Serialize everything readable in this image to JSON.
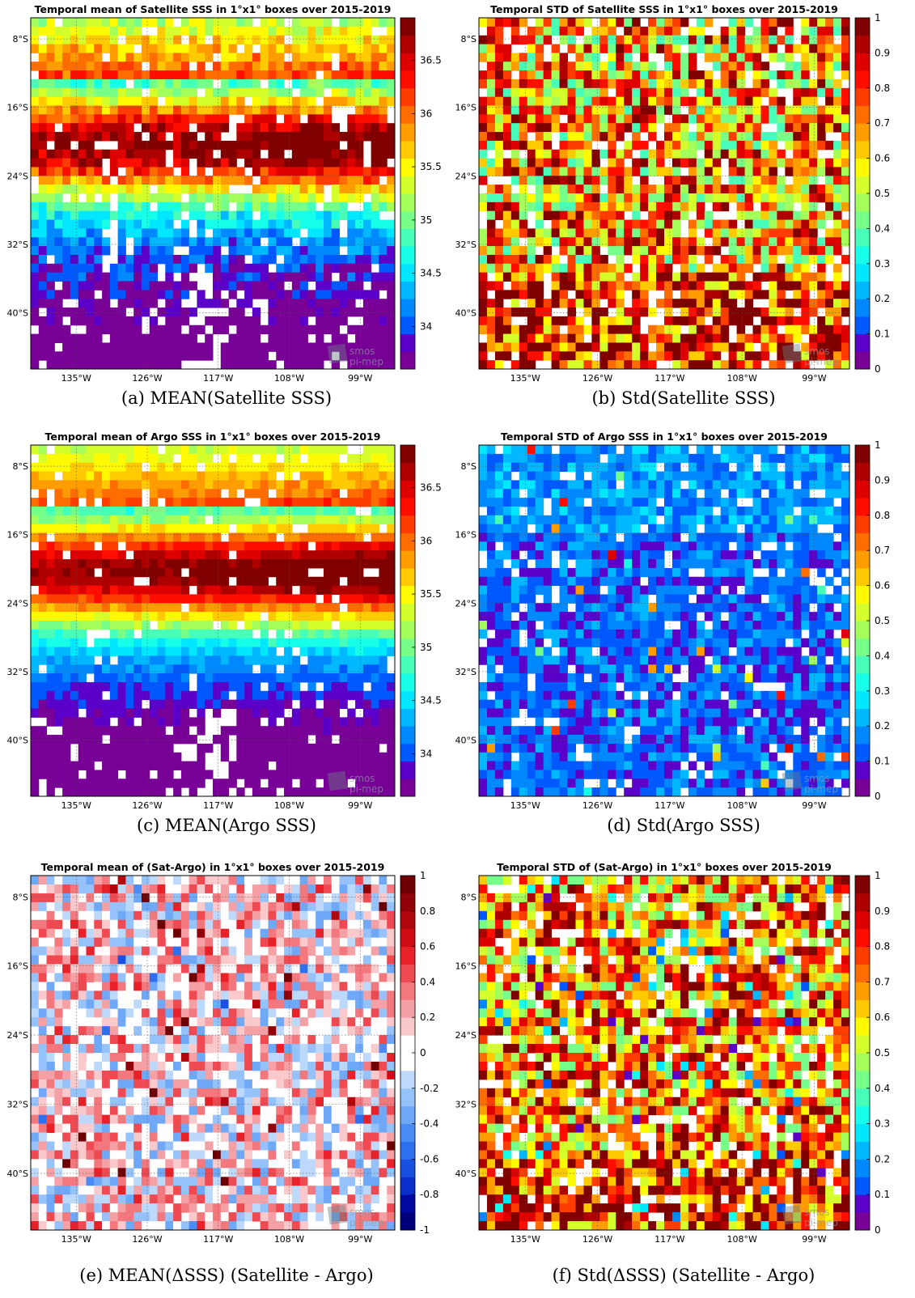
{
  "chart_data": [
    {
      "id": "a",
      "type": "heatmap",
      "title": "Temporal mean of Satellite SSS in 1°x1° boxes over 2015-2019",
      "caption": "(a) MEAN(Satellite SSS)",
      "colormap": "jet",
      "clim": [
        33.6,
        36.9
      ],
      "colorbar_ticks": [
        "34",
        "34.5",
        "35",
        "35.5",
        "36",
        "36.5"
      ],
      "colorbar_tick_values": [
        34,
        34.5,
        35,
        35.5,
        36,
        36.5
      ],
      "x_ticks": [
        "135°W",
        "126°W",
        "117°W",
        "108°W",
        "99°W"
      ],
      "y_ticks": [
        "8°S",
        "16°S",
        "24°S",
        "32°S",
        "40°S"
      ],
      "grid": true,
      "watermark": "smos pi-mep"
    },
    {
      "id": "b",
      "type": "heatmap",
      "title": "Temporal STD of Satellite SSS in 1°x1° boxes over 2015-2019",
      "caption": "(b) Std(Satellite SSS)",
      "colormap": "jet",
      "clim": [
        0,
        1
      ],
      "colorbar_ticks": [
        "0",
        "0.1",
        "0.2",
        "0.3",
        "0.4",
        "0.5",
        "0.6",
        "0.7",
        "0.8",
        "0.9",
        "1"
      ],
      "colorbar_tick_values": [
        0,
        0.1,
        0.2,
        0.3,
        0.4,
        0.5,
        0.6,
        0.7,
        0.8,
        0.9,
        1
      ],
      "x_ticks": [
        "135°W",
        "126°W",
        "117°W",
        "108°W",
        "99°W"
      ],
      "y_ticks": [
        "8°S",
        "16°S",
        "24°S",
        "32°S",
        "40°S"
      ],
      "grid": true,
      "watermark": "smos pi-mep"
    },
    {
      "id": "c",
      "type": "heatmap",
      "title": "Temporal mean of Argo SSS in 1°x1° boxes over 2015-2019",
      "caption": "(c) MEAN(Argo SSS)",
      "colormap": "jet",
      "clim": [
        33.6,
        36.9
      ],
      "colorbar_ticks": [
        "34",
        "34.5",
        "35",
        "35.5",
        "36",
        "36.5"
      ],
      "colorbar_tick_values": [
        34,
        34.5,
        35,
        35.5,
        36,
        36.5
      ],
      "x_ticks": [
        "135°W",
        "126°W",
        "117°W",
        "108°W",
        "99°W"
      ],
      "y_ticks": [
        "8°S",
        "16°S",
        "24°S",
        "32°S",
        "40°S"
      ],
      "grid": true,
      "watermark": "smos pi-mep"
    },
    {
      "id": "d",
      "type": "heatmap",
      "title": "Temporal STD of Argo SSS in 1°x1° boxes over 2015-2019",
      "caption": "(d) Std(Argo SSS)",
      "colormap": "jet",
      "clim": [
        0,
        1
      ],
      "colorbar_ticks": [
        "0",
        "0.1",
        "0.2",
        "0.3",
        "0.4",
        "0.5",
        "0.6",
        "0.7",
        "0.8",
        "0.9",
        "1"
      ],
      "colorbar_tick_values": [
        0,
        0.1,
        0.2,
        0.3,
        0.4,
        0.5,
        0.6,
        0.7,
        0.8,
        0.9,
        1
      ],
      "x_ticks": [
        "135°W",
        "126°W",
        "117°W",
        "108°W",
        "99°W"
      ],
      "y_ticks": [
        "8°S",
        "16°S",
        "24°S",
        "32°S",
        "40°S"
      ],
      "grid": true,
      "watermark": "smos pi-mep"
    },
    {
      "id": "e",
      "type": "heatmap",
      "title": "Temporal mean of (Sat-Argo) in 1°x1° boxes over 2015-2019",
      "caption": "(e) MEAN(ΔSSS) (Satellite - Argo)",
      "colormap": "diverging-blue-white-red",
      "clim": [
        -1,
        1
      ],
      "colorbar_ticks": [
        "-1",
        "-0.8",
        "-0.6",
        "-0.4",
        "-0.2",
        "0",
        "0.2",
        "0.4",
        "0.6",
        "0.8",
        "1"
      ],
      "colorbar_tick_values": [
        -1,
        -0.8,
        -0.6,
        -0.4,
        -0.2,
        0,
        0.2,
        0.4,
        0.6,
        0.8,
        1
      ],
      "x_ticks": [
        "135°W",
        "126°W",
        "117°W",
        "108°W",
        "99°W"
      ],
      "y_ticks": [
        "8°S",
        "16°S",
        "24°S",
        "32°S",
        "40°S"
      ],
      "grid": true,
      "watermark": "smos pi-mep"
    },
    {
      "id": "f",
      "type": "heatmap",
      "title": "Temporal STD of (Sat-Argo) in 1°x1° boxes over 2015-2019",
      "caption": "(f) Std(ΔSSS) (Satellite - Argo)",
      "colormap": "jet",
      "clim": [
        0,
        1
      ],
      "colorbar_ticks": [
        "0",
        "0.1",
        "0.2",
        "0.3",
        "0.4",
        "0.5",
        "0.6",
        "0.7",
        "0.8",
        "0.9",
        "1"
      ],
      "colorbar_tick_values": [
        0,
        0.1,
        0.2,
        0.3,
        0.4,
        0.5,
        0.6,
        0.7,
        0.8,
        0.9,
        1
      ],
      "x_ticks": [
        "135°W",
        "126°W",
        "117°W",
        "108°W",
        "99°W"
      ],
      "y_ticks": [
        "8°S",
        "16°S",
        "24°S",
        "32°S",
        "40°S"
      ],
      "grid": true,
      "watermark": "smos pi-mep"
    }
  ]
}
